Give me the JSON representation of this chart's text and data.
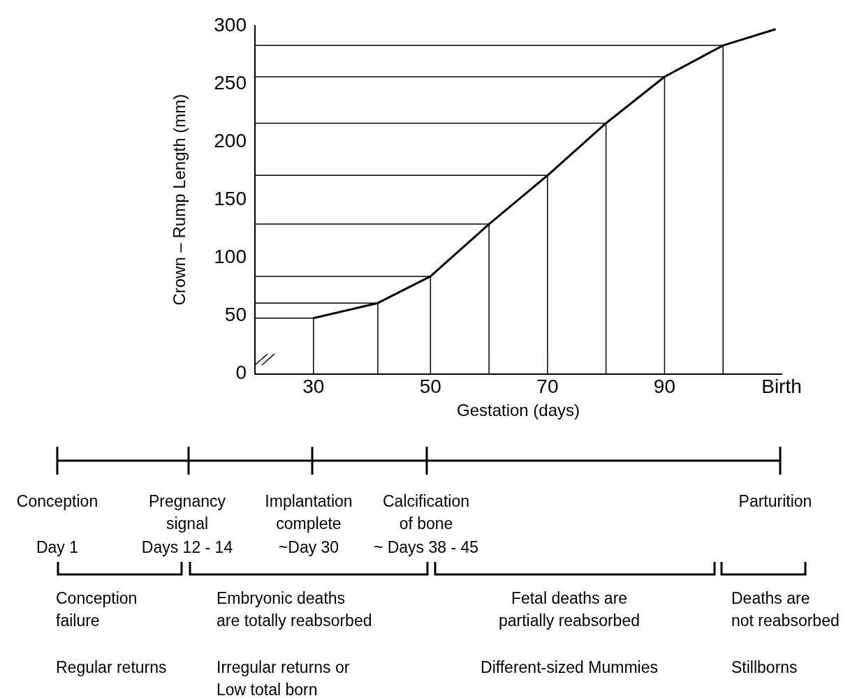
{
  "chart_data": {
    "type": "line",
    "xlabel": "Gestation (days)",
    "ylabel": "Crown – Rump Length (mm)",
    "x": [
      30,
      41,
      50,
      60,
      70,
      80,
      90,
      100,
      109
    ],
    "series": [
      {
        "color": "#000000",
        "values": [
          48,
          61,
          84,
          129,
          171,
          216,
          256,
          283,
          297
        ]
      },
      {
        "color": "#000000",
        "x": [
          20,
          30,
          30
        ],
        "values": [
          48,
          48,
          0
        ]
      },
      {
        "color": "#000000",
        "x": [
          20,
          41,
          41
        ],
        "values": [
          61,
          61,
          0
        ]
      },
      {
        "color": "#000000",
        "x": [
          20,
          50,
          50
        ],
        "values": [
          84,
          84,
          0
        ]
      },
      {
        "color": "#000000",
        "x": [
          20,
          60,
          60
        ],
        "values": [
          129,
          129,
          0
        ]
      },
      {
        "color": "#000000",
        "x": [
          20,
          70,
          70
        ],
        "values": [
          171,
          171,
          0
        ]
      },
      {
        "color": "#000000",
        "x": [
          20,
          80,
          80
        ],
        "values": [
          216,
          216,
          0
        ]
      },
      {
        "color": "#000000",
        "x": [
          20,
          90,
          90
        ],
        "values": [
          256,
          256,
          0
        ]
      },
      {
        "color": "#000000",
        "x": [
          20,
          100,
          100
        ],
        "values": [
          283,
          283,
          0
        ]
      }
    ],
    "xlim": [
      20,
      110
    ],
    "xticks": [
      30,
      50,
      70,
      90,
      {
        "value": 110,
        "label": "Birth"
      }
    ],
    "ylim": [
      0,
      300
    ],
    "yticks": [
      0,
      50,
      100,
      150,
      200,
      250,
      300
    ],
    "grid": false,
    "legend": false,
    "annotations": [
      "Conception",
      "Pregnancy\nsignal",
      "Implantation\ncomplete",
      "Calcification\nof bone",
      "Parturition",
      "Day 1",
      "Days 12 - 14",
      "~Day 30",
      "~ Days 38 - 45",
      "Conception\nfailure",
      "Embryonic deaths\nare totally reabsorbed",
      "Fetal deaths are\npartially reabsorbed",
      "Deaths are\nnot reabsorbed",
      "Regular returns",
      "Irregular returns or\nLow total born",
      "Different-sized Mummies",
      "Stillborns"
    ]
  }
}
